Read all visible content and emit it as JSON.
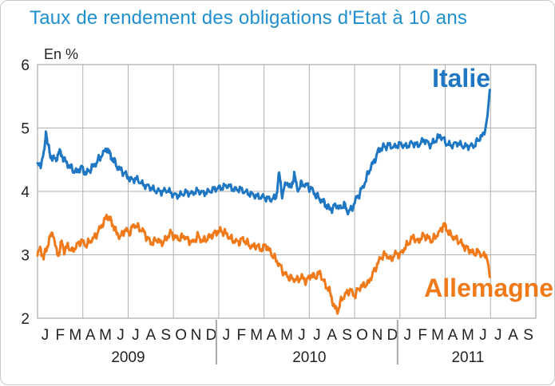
{
  "chart_data": {
    "type": "line",
    "title": "Taux de rendement des obligations d'Etat à 10 ans",
    "unit_label": "En  %",
    "ylim": [
      2,
      6
    ],
    "yticks": [
      2,
      3,
      4,
      5,
      6
    ],
    "xlim": [
      0,
      33
    ],
    "x_unit": "months since start of 2009",
    "month_labels": [
      "J",
      "F",
      "M",
      "A",
      "M",
      "J",
      "J",
      "A",
      "S",
      "O",
      "N",
      "D",
      "J",
      "F",
      "M",
      "A",
      "M",
      "J",
      "J",
      "A",
      "S",
      "O",
      "N",
      "D",
      "J",
      "F",
      "M",
      "A",
      "M",
      "J",
      "J",
      "A",
      "S"
    ],
    "years": [
      "2009",
      "2010",
      "2011"
    ],
    "grid": true,
    "colors": {
      "Italie": "#1f77c4",
      "Allemagne": "#f07a1a"
    },
    "series": [
      {
        "name": "Italie",
        "points": [
          [
            0.0,
            4.4
          ],
          [
            0.25,
            4.45
          ],
          [
            0.45,
            4.62
          ],
          [
            0.55,
            4.97
          ],
          [
            0.7,
            4.72
          ],
          [
            0.85,
            4.55
          ],
          [
            1.0,
            4.55
          ],
          [
            1.2,
            4.48
          ],
          [
            1.4,
            4.62
          ],
          [
            1.6,
            4.58
          ],
          [
            1.8,
            4.48
          ],
          [
            2.0,
            4.42
          ],
          [
            2.3,
            4.35
          ],
          [
            2.6,
            4.3
          ],
          [
            2.9,
            4.38
          ],
          [
            3.2,
            4.28
          ],
          [
            3.5,
            4.35
          ],
          [
            3.8,
            4.42
          ],
          [
            4.1,
            4.52
          ],
          [
            4.4,
            4.62
          ],
          [
            4.6,
            4.68
          ],
          [
            4.8,
            4.58
          ],
          [
            5.0,
            4.5
          ],
          [
            5.3,
            4.38
          ],
          [
            5.6,
            4.32
          ],
          [
            5.9,
            4.25
          ],
          [
            6.2,
            4.18
          ],
          [
            6.6,
            4.2
          ],
          [
            7.0,
            4.12
          ],
          [
            7.4,
            4.08
          ],
          [
            7.8,
            4.0
          ],
          [
            8.2,
            3.98
          ],
          [
            8.6,
            4.02
          ],
          [
            9.0,
            3.96
          ],
          [
            9.4,
            3.95
          ],
          [
            9.8,
            3.98
          ],
          [
            10.2,
            3.95
          ],
          [
            10.6,
            4.0
          ],
          [
            11.0,
            3.98
          ],
          [
            11.4,
            4.02
          ],
          [
            11.8,
            4.05
          ],
          [
            12.2,
            4.05
          ],
          [
            12.6,
            4.08
          ],
          [
            13.0,
            4.03
          ],
          [
            13.4,
            4.05
          ],
          [
            13.8,
            4.0
          ],
          [
            14.2,
            3.95
          ],
          [
            14.6,
            3.9
          ],
          [
            15.0,
            3.9
          ],
          [
            15.4,
            3.88
          ],
          [
            15.8,
            3.92
          ],
          [
            16.0,
            4.28
          ],
          [
            16.2,
            3.95
          ],
          [
            16.5,
            4.15
          ],
          [
            16.8,
            4.05
          ],
          [
            17.0,
            4.28
          ],
          [
            17.2,
            4.02
          ],
          [
            17.5,
            4.12
          ],
          [
            17.8,
            4.1
          ],
          [
            18.1,
            4.05
          ],
          [
            18.4,
            3.95
          ],
          [
            18.7,
            3.88
          ],
          [
            19.0,
            3.82
          ],
          [
            19.2,
            3.75
          ],
          [
            19.5,
            3.72
          ],
          [
            19.8,
            3.8
          ],
          [
            20.0,
            3.72
          ],
          [
            20.3,
            3.8
          ],
          [
            20.5,
            3.68
          ],
          [
            20.8,
            3.72
          ],
          [
            21.1,
            3.88
          ],
          [
            21.4,
            4.0
          ],
          [
            21.7,
            4.15
          ],
          [
            22.0,
            4.35
          ],
          [
            22.3,
            4.48
          ],
          [
            22.6,
            4.65
          ],
          [
            22.9,
            4.7
          ],
          [
            23.2,
            4.72
          ],
          [
            23.6,
            4.68
          ],
          [
            24.0,
            4.75
          ],
          [
            24.4,
            4.72
          ],
          [
            24.8,
            4.78
          ],
          [
            25.2,
            4.72
          ],
          [
            25.6,
            4.8
          ],
          [
            26.0,
            4.72
          ],
          [
            26.4,
            4.82
          ],
          [
            26.7,
            4.88
          ],
          [
            27.0,
            4.78
          ],
          [
            27.4,
            4.72
          ],
          [
            27.8,
            4.75
          ],
          [
            28.2,
            4.7
          ],
          [
            28.6,
            4.72
          ],
          [
            29.0,
            4.75
          ],
          [
            29.3,
            4.85
          ],
          [
            29.6,
            4.9
          ],
          [
            29.8,
            5.2
          ],
          [
            29.95,
            5.6
          ]
        ]
      },
      {
        "name": "Allemagne",
        "points": [
          [
            0.0,
            3.0
          ],
          [
            0.2,
            3.1
          ],
          [
            0.4,
            2.95
          ],
          [
            0.6,
            3.1
          ],
          [
            0.8,
            3.25
          ],
          [
            1.0,
            3.38
          ],
          [
            1.2,
            3.1
          ],
          [
            1.4,
            3.0
          ],
          [
            1.6,
            3.2
          ],
          [
            1.8,
            3.05
          ],
          [
            2.0,
            3.15
          ],
          [
            2.3,
            3.05
          ],
          [
            2.6,
            3.15
          ],
          [
            2.9,
            3.22
          ],
          [
            3.2,
            3.15
          ],
          [
            3.5,
            3.22
          ],
          [
            3.8,
            3.28
          ],
          [
            4.1,
            3.4
          ],
          [
            4.4,
            3.52
          ],
          [
            4.6,
            3.62
          ],
          [
            4.8,
            3.55
          ],
          [
            5.0,
            3.48
          ],
          [
            5.2,
            3.35
          ],
          [
            5.5,
            3.28
          ],
          [
            5.8,
            3.4
          ],
          [
            6.1,
            3.35
          ],
          [
            6.4,
            3.48
          ],
          [
            6.7,
            3.42
          ],
          [
            7.0,
            3.38
          ],
          [
            7.3,
            3.25
          ],
          [
            7.6,
            3.18
          ],
          [
            7.9,
            3.25
          ],
          [
            8.2,
            3.18
          ],
          [
            8.5,
            3.25
          ],
          [
            8.8,
            3.35
          ],
          [
            9.1,
            3.28
          ],
          [
            9.4,
            3.25
          ],
          [
            9.7,
            3.3
          ],
          [
            10.0,
            3.22
          ],
          [
            10.3,
            3.2
          ],
          [
            10.6,
            3.3
          ],
          [
            10.9,
            3.22
          ],
          [
            11.2,
            3.25
          ],
          [
            11.5,
            3.3
          ],
          [
            11.8,
            3.35
          ],
          [
            12.1,
            3.38
          ],
          [
            12.4,
            3.35
          ],
          [
            12.7,
            3.28
          ],
          [
            13.0,
            3.22
          ],
          [
            13.3,
            3.2
          ],
          [
            13.6,
            3.25
          ],
          [
            13.9,
            3.18
          ],
          [
            14.2,
            3.12
          ],
          [
            14.5,
            3.15
          ],
          [
            14.8,
            3.08
          ],
          [
            15.1,
            3.15
          ],
          [
            15.4,
            3.05
          ],
          [
            15.7,
            2.95
          ],
          [
            16.0,
            2.85
          ],
          [
            16.3,
            2.72
          ],
          [
            16.6,
            2.65
          ],
          [
            16.9,
            2.62
          ],
          [
            17.2,
            2.6
          ],
          [
            17.5,
            2.65
          ],
          [
            17.8,
            2.58
          ],
          [
            18.1,
            2.68
          ],
          [
            18.4,
            2.65
          ],
          [
            18.7,
            2.72
          ],
          [
            19.0,
            2.55
          ],
          [
            19.3,
            2.45
          ],
          [
            19.5,
            2.3
          ],
          [
            19.7,
            2.15
          ],
          [
            19.9,
            2.12
          ],
          [
            20.1,
            2.28
          ],
          [
            20.4,
            2.38
          ],
          [
            20.7,
            2.45
          ],
          [
            21.0,
            2.35
          ],
          [
            21.3,
            2.48
          ],
          [
            21.6,
            2.52
          ],
          [
            21.9,
            2.55
          ],
          [
            22.2,
            2.7
          ],
          [
            22.5,
            2.85
          ],
          [
            22.8,
            2.98
          ],
          [
            23.1,
            3.0
          ],
          [
            23.4,
            2.92
          ],
          [
            23.7,
            3.02
          ],
          [
            24.0,
            3.0
          ],
          [
            24.3,
            3.1
          ],
          [
            24.6,
            3.2
          ],
          [
            24.9,
            3.28
          ],
          [
            25.2,
            3.2
          ],
          [
            25.5,
            3.3
          ],
          [
            25.8,
            3.28
          ],
          [
            26.1,
            3.22
          ],
          [
            26.4,
            3.3
          ],
          [
            26.7,
            3.38
          ],
          [
            26.9,
            3.48
          ],
          [
            27.1,
            3.4
          ],
          [
            27.4,
            3.3
          ],
          [
            27.7,
            3.25
          ],
          [
            28.0,
            3.2
          ],
          [
            28.3,
            3.12
          ],
          [
            28.6,
            3.08
          ],
          [
            28.9,
            3.02
          ],
          [
            29.2,
            3.05
          ],
          [
            29.5,
            2.98
          ],
          [
            29.7,
            3.0
          ],
          [
            29.85,
            2.85
          ],
          [
            29.95,
            2.65
          ]
        ]
      }
    ],
    "labels": [
      {
        "series": "Italie",
        "text": "Italie"
      },
      {
        "series": "Allemagne",
        "text": "Allemagne"
      }
    ]
  }
}
